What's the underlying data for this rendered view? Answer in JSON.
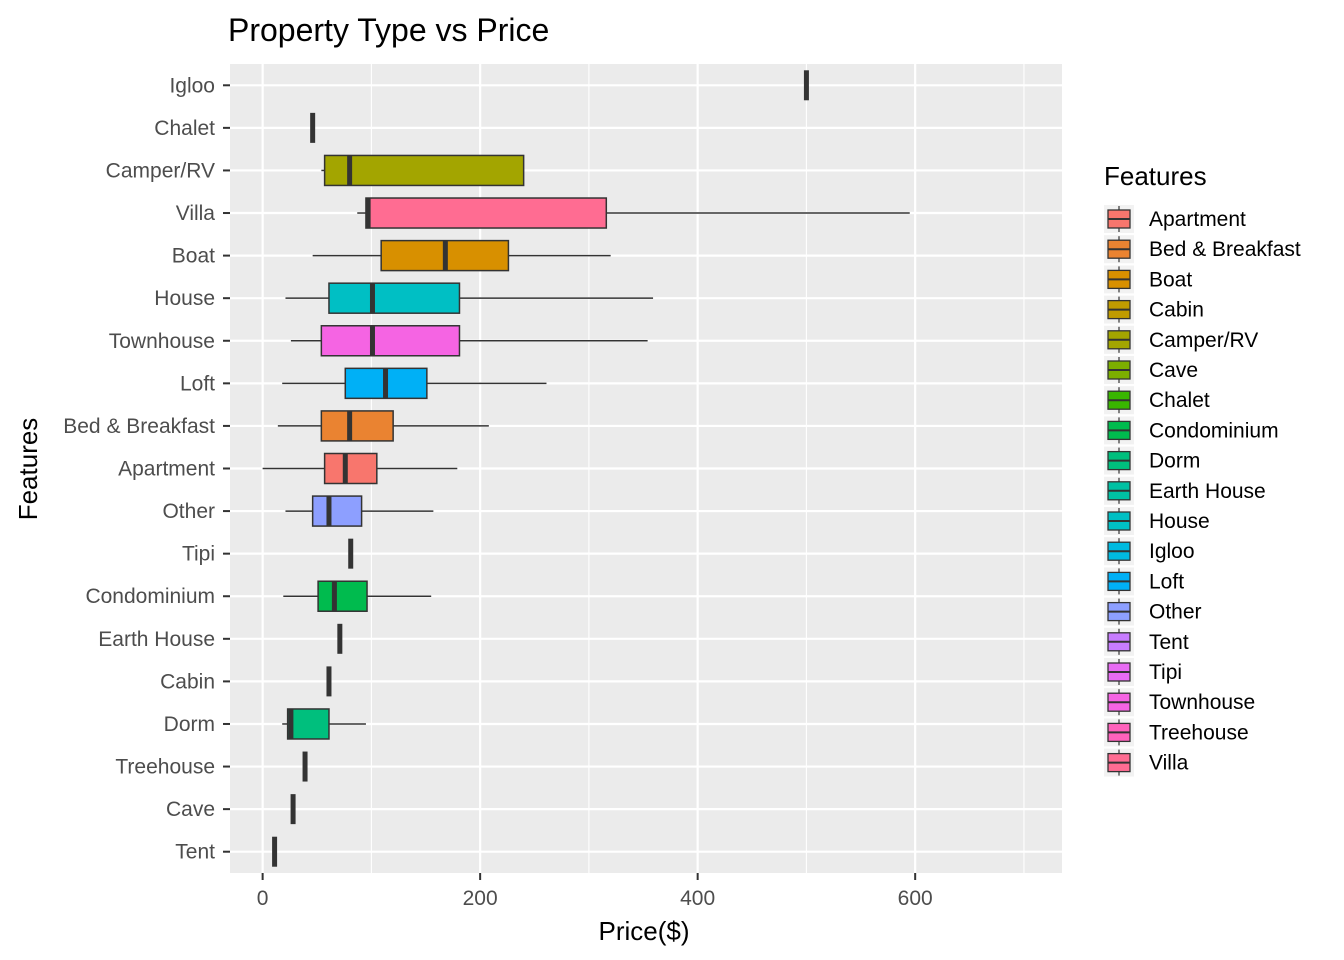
{
  "chart_data": {
    "type": "boxplot",
    "orientation": "horizontal",
    "title": "Property Type vs Price",
    "xlabel": "Price($)",
    "ylabel": "Features",
    "xlim": [
      -30,
      735
    ],
    "x_ticks": [
      0,
      200,
      400,
      600
    ],
    "grid": true,
    "categories": [
      "Igloo",
      "Chalet",
      "Camper/RV",
      "Villa",
      "Boat",
      "House",
      "Townhouse",
      "Loft",
      "Bed & Breakfast",
      "Apartment",
      "Other",
      "Tipi",
      "Condominium",
      "Earth House",
      "Cabin",
      "Dorm",
      "Treehouse",
      "Cave",
      "Tent"
    ],
    "boxes": [
      {
        "category": "Igloo",
        "min": 500,
        "q1": 500,
        "median": 500,
        "q3": 500,
        "max": 500
      },
      {
        "category": "Chalet",
        "min": 46,
        "q1": 46,
        "median": 46,
        "q3": 46,
        "max": 46
      },
      {
        "category": "Camper/RV",
        "min": 54,
        "q1": 57,
        "median": 80,
        "q3": 240,
        "max": 240
      },
      {
        "category": "Villa",
        "min": 87,
        "q1": 95,
        "median": 97,
        "q3": 316,
        "max": 595
      },
      {
        "category": "Boat",
        "min": 46,
        "q1": 109,
        "median": 168,
        "q3": 226,
        "max": 320
      },
      {
        "category": "House",
        "min": 21,
        "q1": 61,
        "median": 101,
        "q3": 181,
        "max": 359
      },
      {
        "category": "Townhouse",
        "min": 26,
        "q1": 54,
        "median": 101,
        "q3": 181,
        "max": 354
      },
      {
        "category": "Loft",
        "min": 18,
        "q1": 76,
        "median": 113,
        "q3": 151,
        "max": 261
      },
      {
        "category": "Bed & Breakfast",
        "min": 14,
        "q1": 54,
        "median": 80,
        "q3": 120,
        "max": 208
      },
      {
        "category": "Apartment",
        "min": 0,
        "q1": 57,
        "median": 76,
        "q3": 105,
        "max": 179
      },
      {
        "category": "Other",
        "min": 21,
        "q1": 46,
        "median": 61,
        "q3": 91,
        "max": 157
      },
      {
        "category": "Tipi",
        "min": 81,
        "q1": 81,
        "median": 81,
        "q3": 81,
        "max": 81
      },
      {
        "category": "Condominium",
        "min": 19,
        "q1": 51,
        "median": 66,
        "q3": 96,
        "max": 155
      },
      {
        "category": "Earth House",
        "min": 71,
        "q1": 71,
        "median": 71,
        "q3": 71,
        "max": 71
      },
      {
        "category": "Cabin",
        "min": 61,
        "q1": 61,
        "median": 61,
        "q3": 61,
        "max": 61
      },
      {
        "category": "Dorm",
        "min": 18,
        "q1": 23,
        "median": 26,
        "q3": 61,
        "max": 95
      },
      {
        "category": "Treehouse",
        "min": 39,
        "q1": 39,
        "median": 39,
        "q3": 39,
        "max": 39
      },
      {
        "category": "Cave",
        "min": 28,
        "q1": 28,
        "median": 28,
        "q3": 28,
        "max": 28
      },
      {
        "category": "Tent",
        "min": 11,
        "q1": 11,
        "median": 11,
        "q3": 11,
        "max": 11
      }
    ],
    "legend": {
      "title": "Features",
      "placement": "right",
      "entries": [
        {
          "label": "Apartment",
          "color": "#F8766D"
        },
        {
          "label": "Bed & Breakfast",
          "color": "#EA8331"
        },
        {
          "label": "Boat",
          "color": "#D89000"
        },
        {
          "label": "Cabin",
          "color": "#C09B00"
        },
        {
          "label": "Camper/RV",
          "color": "#A3A500"
        },
        {
          "label": "Cave",
          "color": "#7CAE00"
        },
        {
          "label": "Chalet",
          "color": "#39B600"
        },
        {
          "label": "Condominium",
          "color": "#00BB4E"
        },
        {
          "label": "Dorm",
          "color": "#00BF7D"
        },
        {
          "label": "Earth House",
          "color": "#00C1A3"
        },
        {
          "label": "House",
          "color": "#00BFC4"
        },
        {
          "label": "Igloo",
          "color": "#00BAE0"
        },
        {
          "label": "Loft",
          "color": "#00B0F6"
        },
        {
          "label": "Other",
          "color": "#8D9FFF"
        },
        {
          "label": "Tent",
          "color": "#C77CFF"
        },
        {
          "label": "Tipi",
          "color": "#E76BF3"
        },
        {
          "label": "Townhouse",
          "color": "#F564E3"
        },
        {
          "label": "Treehouse",
          "color": "#FF62BC"
        },
        {
          "label": "Villa",
          "color": "#FF6C92"
        }
      ]
    }
  }
}
